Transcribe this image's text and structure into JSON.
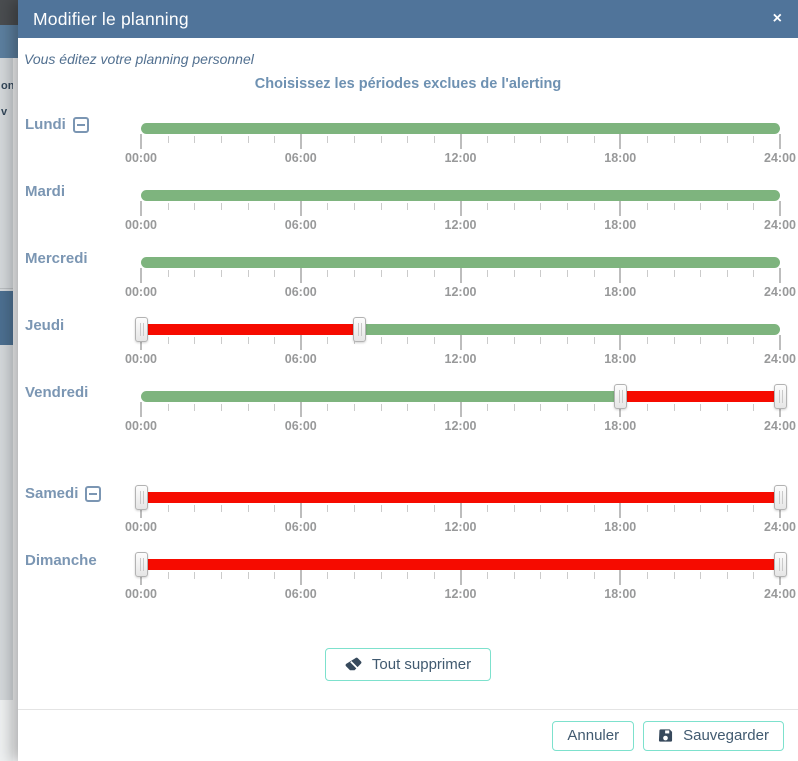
{
  "modal": {
    "title": "Modifier le planning",
    "close_glyph": "×",
    "subtitle": "Vous éditez votre planning personnel",
    "heading": "Choisissez les périodes exclues de l'alerting"
  },
  "backdrop": {
    "fragments": [
      "on",
      "v"
    ]
  },
  "colors": {
    "green": "#7eb47e",
    "red": "#f60b00",
    "header": "#50749a",
    "accent_teal": "#7de1cd",
    "label_blue": "#7b96b3"
  },
  "sliders": {
    "tick_labels": [
      "00:00",
      "06:00",
      "12:00",
      "18:00",
      "24:00"
    ],
    "axis_min_hour": 0,
    "axis_max_hour": 24,
    "days": [
      {
        "label": "Lundi",
        "has_remove": true,
        "handles": [],
        "segments": [
          {
            "color": "green",
            "start": 0,
            "end": 24
          }
        ]
      },
      {
        "label": "Mardi",
        "has_remove": false,
        "handles": [],
        "segments": [
          {
            "color": "green",
            "start": 0,
            "end": 24
          }
        ]
      },
      {
        "label": "Mercredi",
        "has_remove": false,
        "handles": [],
        "segments": [
          {
            "color": "green",
            "start": 0,
            "end": 24
          }
        ]
      },
      {
        "label": "Jeudi",
        "has_remove": false,
        "handles": [
          0,
          8.2
        ],
        "segments": [
          {
            "color": "red",
            "start": 0,
            "end": 8.2
          },
          {
            "color": "green",
            "start": 8.2,
            "end": 24
          }
        ]
      },
      {
        "label": "Vendredi",
        "has_remove": false,
        "handles": [
          18,
          24
        ],
        "segments": [
          {
            "color": "green",
            "start": 0,
            "end": 18
          },
          {
            "color": "red",
            "start": 18,
            "end": 24
          }
        ]
      },
      {
        "label": "Samedi",
        "has_remove": true,
        "handles": [
          0,
          24
        ],
        "segments": [
          {
            "color": "red",
            "start": 0,
            "end": 24
          }
        ]
      },
      {
        "label": "Dimanche",
        "has_remove": false,
        "handles": [
          0,
          24
        ],
        "segments": [
          {
            "color": "red",
            "start": 0,
            "end": 24
          }
        ]
      }
    ]
  },
  "actions": {
    "clear_all": "Tout supprimer"
  },
  "footer": {
    "cancel": "Annuler",
    "save": "Sauvegarder"
  }
}
